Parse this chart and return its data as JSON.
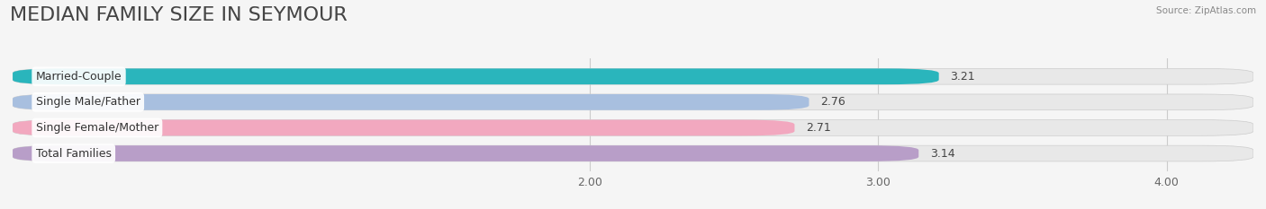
{
  "title": "MEDIAN FAMILY SIZE IN SEYMOUR",
  "source": "Source: ZipAtlas.com",
  "categories": [
    "Married-Couple",
    "Single Male/Father",
    "Single Female/Mother",
    "Total Families"
  ],
  "values": [
    3.21,
    2.76,
    2.71,
    3.14
  ],
  "bar_colors": [
    "#2ab5bc",
    "#a8bfdf",
    "#f2a8bf",
    "#b89ec8"
  ],
  "value_colors": [
    "#ffffff",
    "#555555",
    "#555555",
    "#555555"
  ],
  "xlim": [
    0,
    4.3
  ],
  "xstart": 0.0,
  "xticks": [
    2.0,
    3.0,
    4.0
  ],
  "xtick_labels": [
    "2.00",
    "3.00",
    "4.00"
  ],
  "bar_height": 0.62,
  "bg_color": "#f5f5f5",
  "bar_bg_color": "#e8e8e8",
  "title_fontsize": 16,
  "label_fontsize": 9,
  "value_fontsize": 9,
  "tick_fontsize": 9,
  "grid_color": "#d0d0d0"
}
